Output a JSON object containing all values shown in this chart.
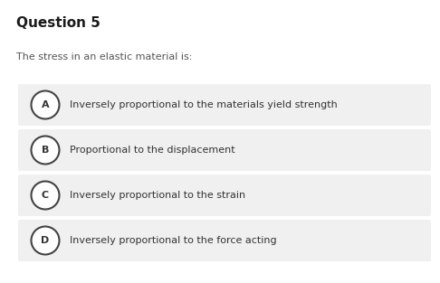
{
  "title": "Question 5",
  "question": "The stress in an elastic material is:",
  "options": [
    {
      "label": "A",
      "text": "Inversely proportional to the materials yield strength"
    },
    {
      "label": "B",
      "text": "Proportional to the displacement"
    },
    {
      "label": "C",
      "text": "Inversely proportional to the strain"
    },
    {
      "label": "D",
      "text": "Inversely proportional to the force acting"
    }
  ],
  "bg_color": "#ffffff",
  "option_bg_color": "#f0f0f0",
  "title_fontsize": 11,
  "question_fontsize": 8,
  "option_fontsize": 8,
  "label_fontsize": 8,
  "title_color": "#1a1a1a",
  "question_color": "#555555",
  "option_text_color": "#333333",
  "circle_edge_color": "#444444",
  "circle_face_color": "#ffffff",
  "fig_width": 4.86,
  "fig_height": 3.13,
  "dpi": 100
}
